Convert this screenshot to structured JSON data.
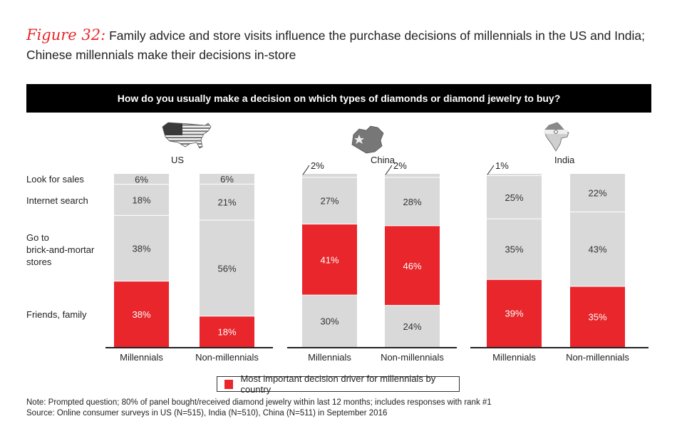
{
  "figure": {
    "label": "Figure 32:",
    "title": "Family advice and store visits influence the purchase decisions of millennials in the US and India; Chinese millennials make their decisions in-store"
  },
  "banner": "How do you usually make a decision on which types of diamonds or diamond jewelry to buy?",
  "legend": {
    "label": "Most important decision driver for millennials by country",
    "color": "#e8262b"
  },
  "notes": [
    "Note: Prompted question; 80% of panel bought/received diamond jewelry within last 12 months; includes responses with rank #1",
    "Source: Online consumer surveys in US (N=515), India (N=510), China (N=511) in September 2016"
  ],
  "colors": {
    "highlight": "#e8262b",
    "default": "#d9d9d9",
    "divider": "#ffffff"
  },
  "chart_data": {
    "type": "bar",
    "stacked": true,
    "normalized": true,
    "row_labels": [
      "Look for sales",
      "Internet search",
      "Go to brick-and-mortar stores",
      "Friends, family"
    ],
    "groups": [
      {
        "country": "US",
        "flag": "us-flag-map",
        "bars": [
          {
            "category": "Millennials",
            "segments": [
              {
                "name": "Friends, family",
                "value": 38,
                "label": "38%",
                "highlight": true
              },
              {
                "name": "Go to brick-and-mortar stores",
                "value": 38,
                "label": "38%",
                "highlight": false
              },
              {
                "name": "Internet search",
                "value": 18,
                "label": "18%",
                "highlight": false
              },
              {
                "name": "Look for sales",
                "value": 6,
                "label": "6%",
                "highlight": false
              }
            ]
          },
          {
            "category": "Non-millennials",
            "segments": [
              {
                "name": "Friends, family",
                "value": 18,
                "label": "18%",
                "highlight": true
              },
              {
                "name": "Go to brick-and-mortar stores",
                "value": 56,
                "label": "56%",
                "highlight": false
              },
              {
                "name": "Internet search",
                "value": 21,
                "label": "21%",
                "highlight": false
              },
              {
                "name": "Look for sales",
                "value": 6,
                "label": "6%",
                "highlight": false
              }
            ]
          }
        ]
      },
      {
        "country": "China",
        "flag": "china-flag-map",
        "bars": [
          {
            "category": "Millennials",
            "segments": [
              {
                "name": "Friends, family",
                "value": 30,
                "label": "30%",
                "highlight": false
              },
              {
                "name": "Go to brick-and-mortar stores",
                "value": 41,
                "label": "41%",
                "highlight": true
              },
              {
                "name": "Internet search",
                "value": 27,
                "label": "27%",
                "highlight": false
              },
              {
                "name": "Look for sales",
                "value": 2,
                "label": "2%",
                "highlight": false,
                "callout": true
              }
            ]
          },
          {
            "category": "Non-millennials",
            "segments": [
              {
                "name": "Friends, family",
                "value": 24,
                "label": "24%",
                "highlight": false
              },
              {
                "name": "Go to brick-and-mortar stores",
                "value": 46,
                "label": "46%",
                "highlight": true
              },
              {
                "name": "Internet search",
                "value": 28,
                "label": "28%",
                "highlight": false
              },
              {
                "name": "Look for sales",
                "value": 2,
                "label": "2%",
                "highlight": false,
                "callout": true
              }
            ]
          }
        ]
      },
      {
        "country": "India",
        "flag": "india-flag-map",
        "bars": [
          {
            "category": "Millennials",
            "segments": [
              {
                "name": "Friends, family",
                "value": 39,
                "label": "39%",
                "highlight": true
              },
              {
                "name": "Go to brick-and-mortar stores",
                "value": 35,
                "label": "35%",
                "highlight": false
              },
              {
                "name": "Internet search",
                "value": 25,
                "label": "25%",
                "highlight": false
              },
              {
                "name": "Look for sales",
                "value": 1,
                "label": "1%",
                "highlight": false,
                "callout": true
              }
            ]
          },
          {
            "category": "Non-millennials",
            "segments": [
              {
                "name": "Friends, family",
                "value": 35,
                "label": "35%",
                "highlight": true
              },
              {
                "name": "Go to brick-and-mortar stores",
                "value": 43,
                "label": "43%",
                "highlight": false
              },
              {
                "name": "Internet search",
                "value": 22,
                "label": "22%",
                "highlight": false
              }
            ]
          }
        ]
      }
    ]
  }
}
